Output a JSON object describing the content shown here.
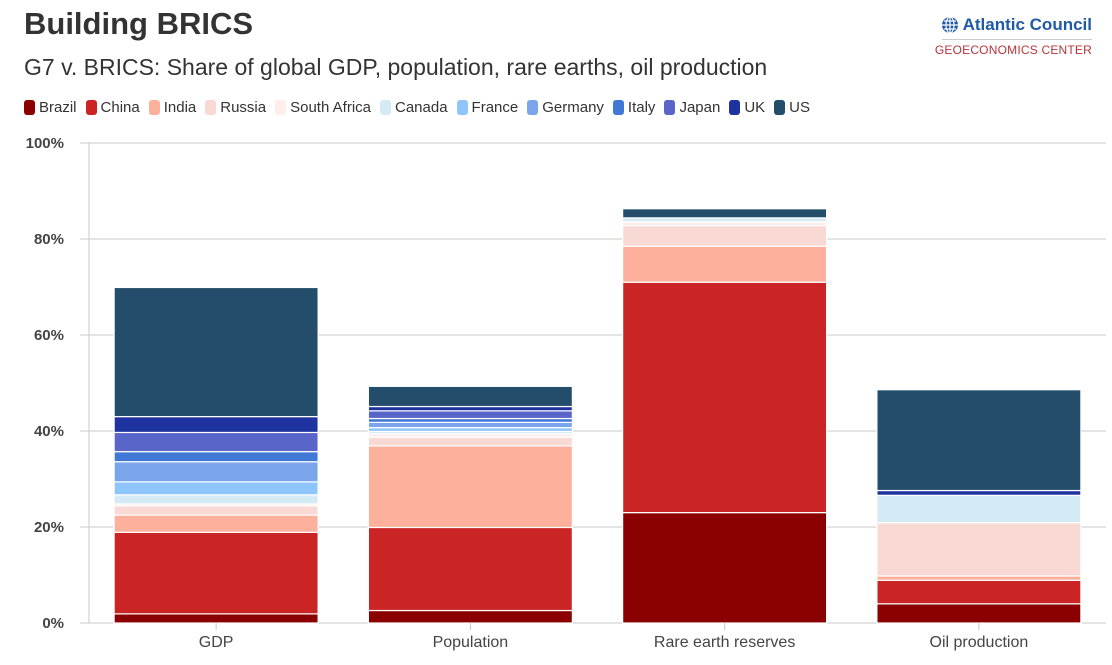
{
  "header": {
    "title": "Building BRICS",
    "subtitle": "G7 v. BRICS: Share of global GDP, population, rare earths, oil production"
  },
  "logo": {
    "name": "Atlantic Council",
    "sub": "GEOECONOMICS CENTER",
    "icon": "globe-icon"
  },
  "chart_data": {
    "type": "bar",
    "stacked": true,
    "title": "G7 v. BRICS: Share of global GDP, population, rare earths, oil production",
    "xlabel": "",
    "ylabel": "",
    "ylim": [
      0,
      100
    ],
    "yticks": [
      0,
      20,
      40,
      60,
      80,
      100
    ],
    "ytick_labels": [
      "0%",
      "20%",
      "40%",
      "60%",
      "80%",
      "100%"
    ],
    "grid": true,
    "legend_position": "top-left",
    "categories": [
      "GDP",
      "Population",
      "Rare earth reserves",
      "Oil production"
    ],
    "series": [
      {
        "name": "Brazil",
        "color": "#8b0000",
        "values": [
          1.9,
          2.6,
          23.0,
          4.0
        ]
      },
      {
        "name": "China",
        "color": "#cb2424",
        "values": [
          17.0,
          17.3,
          48.0,
          4.9
        ]
      },
      {
        "name": "India",
        "color": "#fdb09c",
        "values": [
          3.6,
          17.0,
          7.5,
          0.9
        ]
      },
      {
        "name": "Russia",
        "color": "#f9d9d3",
        "values": [
          1.9,
          1.8,
          4.3,
          11.1
        ]
      },
      {
        "name": "South Africa",
        "color": "#fdeeea",
        "values": [
          0.4,
          0.7,
          0.8,
          0.0
        ]
      },
      {
        "name": "Canada",
        "color": "#d4eaf5",
        "values": [
          1.9,
          0.5,
          0.8,
          5.7
        ]
      },
      {
        "name": "France",
        "color": "#8ec5fc",
        "values": [
          2.7,
          0.8,
          0.0,
          0.0
        ]
      },
      {
        "name": "Germany",
        "color": "#7aa5ea",
        "values": [
          4.2,
          1.1,
          0.0,
          0.0
        ]
      },
      {
        "name": "Italy",
        "color": "#4078d6",
        "values": [
          2.1,
          0.8,
          0.0,
          0.0
        ]
      },
      {
        "name": "Japan",
        "color": "#5965c8",
        "values": [
          4.0,
          1.6,
          0.0,
          0.0
        ]
      },
      {
        "name": "UK",
        "color": "#1f33a0",
        "values": [
          3.3,
          0.9,
          0.0,
          1.0
        ]
      },
      {
        "name": "US",
        "color": "#234d6b",
        "values": [
          26.9,
          4.2,
          1.9,
          21.0
        ]
      }
    ]
  }
}
